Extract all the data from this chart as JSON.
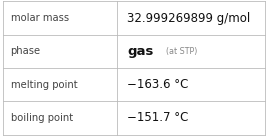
{
  "rows": [
    {
      "label": "molar mass",
      "value_main": "32.999269899 g/mol",
      "value_sub": null,
      "value_main_bold": false
    },
    {
      "label": "phase",
      "value_main": "gas",
      "value_sub": "(at STP)",
      "value_main_bold": true
    },
    {
      "label": "melting point",
      "value_main": "−163.6 °C",
      "value_sub": null,
      "value_main_bold": false
    },
    {
      "label": "boiling point",
      "value_main": "−151.7 °C",
      "value_sub": null,
      "value_main_bold": false
    }
  ],
  "col_split": 0.435,
  "background_color": "#ffffff",
  "border_color": "#bbbbbb",
  "label_color": "#444444",
  "value_color": "#111111",
  "sub_color": "#888888",
  "label_fontsize": 7.2,
  "value_fontsize": 8.5,
  "sub_fontsize": 5.8,
  "bold_value_fontsize": 9.5,
  "line_width": 0.6
}
